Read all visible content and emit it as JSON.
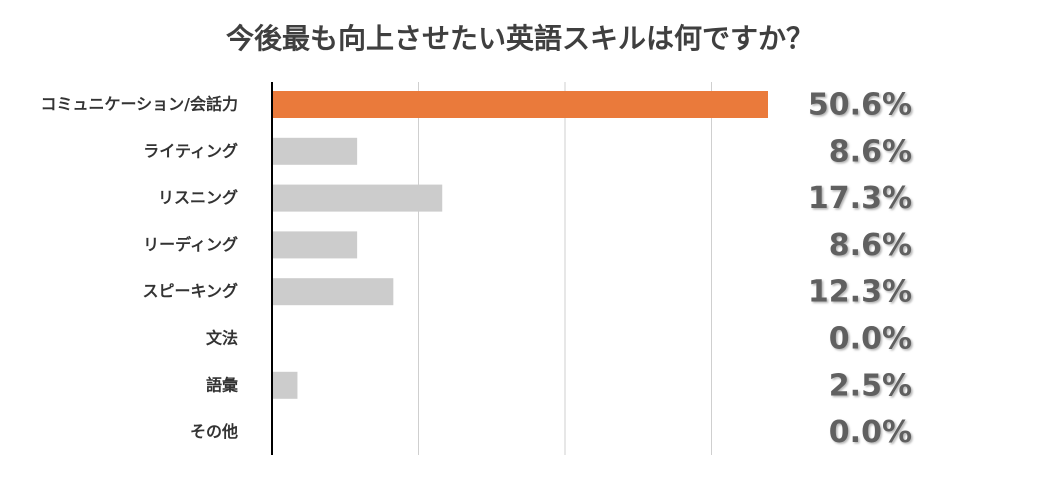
{
  "chart_data": {
    "type": "bar",
    "orientation": "horizontal",
    "title": "今後最も向上させたい英語スキルは何ですか？",
    "categories": [
      "コミュニケーション/会話力",
      "ライティング",
      "リスニング",
      "リーディング",
      "スピーキング",
      "文法",
      "語彙",
      "その他"
    ],
    "values": [
      50.6,
      8.6,
      17.3,
      8.6,
      12.3,
      0.0,
      2.5,
      0.0
    ],
    "value_labels": [
      "50.6%",
      "8.6%",
      "17.3%",
      "8.6%",
      "12.3%",
      "0.0%",
      "2.5%",
      "0.0%"
    ],
    "xlim": [
      0,
      60
    ],
    "grid": true,
    "highlight_index": 0,
    "colors": {
      "highlight": "#ea7a3b",
      "bar": "#cccccc",
      "grid": "#cfcfcf",
      "axis": "#000000",
      "title": "#3f3f3f",
      "category_text": "#333333",
      "value_text": "#606060",
      "value_shadow": "#9a9a9a"
    }
  }
}
